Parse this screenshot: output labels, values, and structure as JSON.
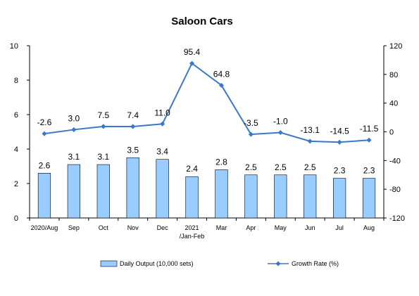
{
  "chart_data": {
    "type": "bar+line",
    "title": "Saloon Cars",
    "categories": [
      "2020/Aug",
      "Sep",
      "Oct",
      "Nov",
      "Dec",
      "2021\n/Jan-Feb",
      "Mar",
      "Apr",
      "May",
      "Jun",
      "Jul",
      "Aug"
    ],
    "series": [
      {
        "name": "Daily Output (10,000 sets)",
        "type": "bar",
        "axis": "left",
        "color": "#99ccff",
        "values": [
          2.6,
          3.1,
          3.1,
          3.5,
          3.4,
          2.4,
          2.8,
          2.5,
          2.5,
          2.5,
          2.3,
          2.3
        ],
        "labels": [
          "2.6",
          "3.1",
          "3.1",
          "3.5",
          "3.4",
          "2.4",
          "2.8",
          "2.5",
          "2.5",
          "2.5",
          "2.3",
          "2.3"
        ]
      },
      {
        "name": "Growth Rate (%)",
        "type": "line",
        "axis": "right",
        "color": "#3c78c8",
        "values": [
          -2.6,
          3.0,
          7.5,
          7.4,
          11.0,
          95.4,
          64.8,
          -3.5,
          -1.0,
          -13.1,
          -14.5,
          -11.5
        ],
        "labels": [
          "-2.6",
          "3.0",
          "7.5",
          "7.4",
          "11.0",
          "95.4",
          "64.8",
          "-3.5",
          "-1.0",
          "-13.1",
          "-14.5",
          "-11.5"
        ]
      }
    ],
    "y_left": {
      "min": 0,
      "max": 10,
      "ticks": [
        0,
        2,
        4,
        6,
        8,
        10
      ]
    },
    "y_right": {
      "min": -120,
      "max": 120,
      "ticks": [
        -120,
        -80,
        -40,
        0,
        40,
        80,
        120
      ]
    },
    "legend_position": "bottom",
    "grid": false
  }
}
